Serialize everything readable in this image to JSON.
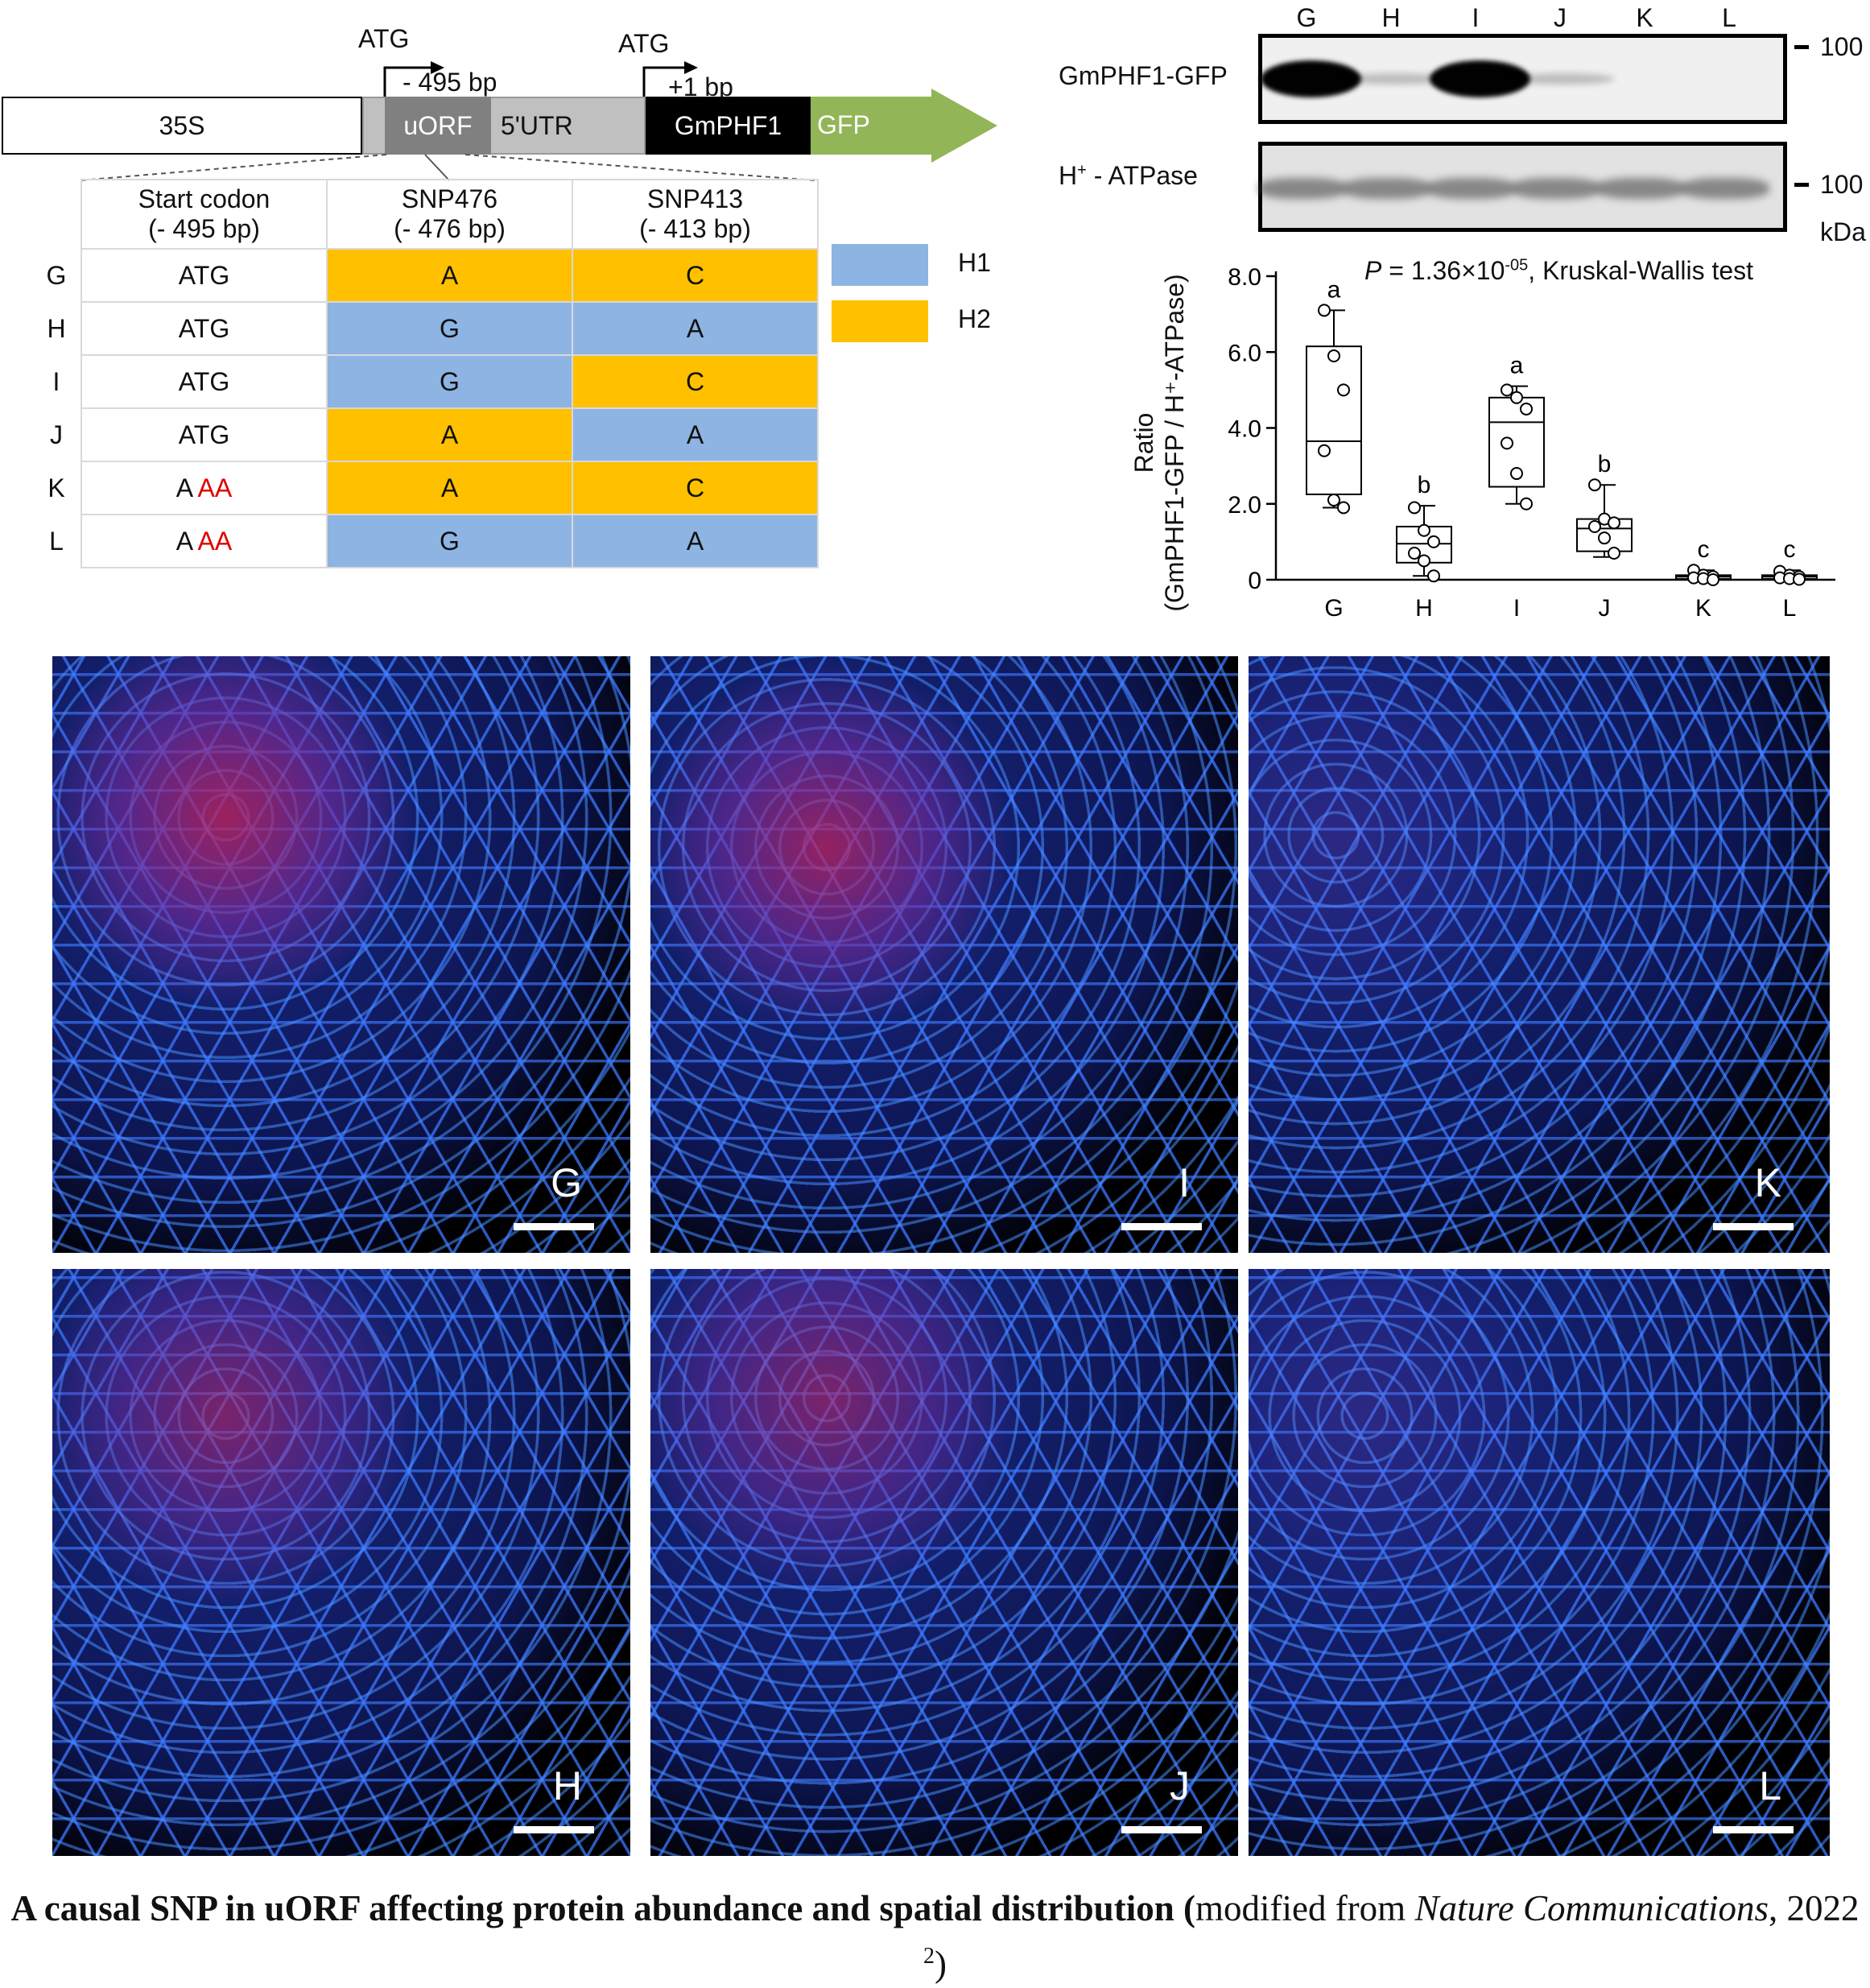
{
  "construct": {
    "atg1_label": "ATG",
    "atg1_pos": "- 495 bp",
    "atg2_label": "ATG",
    "atg2_pos": "+1 bp",
    "segments": [
      "35S",
      "uORF",
      "5'UTR",
      "GmPHF1",
      "GFP"
    ],
    "colors": {
      "promoter": "#ffffff",
      "uorf": "#808080",
      "utr": "#c0c0c0",
      "gene": "#000000",
      "gfp": "#92b558"
    }
  },
  "snp_table": {
    "headers": [
      {
        "line1": "Start codon",
        "line2": "(- 495 bp)"
      },
      {
        "line1": "SNP476",
        "line2": "(- 476 bp)"
      },
      {
        "line1": "SNP413",
        "line2": "(- 413 bp)"
      }
    ],
    "rows": [
      {
        "label": "G",
        "codon_a": "ATG",
        "codon_b": "",
        "snp476": "A",
        "snp476_hap": "H2",
        "snp413": "C",
        "snp413_hap": "H2"
      },
      {
        "label": "H",
        "codon_a": "ATG",
        "codon_b": "",
        "snp476": "G",
        "snp476_hap": "H1",
        "snp413": "A",
        "snp413_hap": "H1"
      },
      {
        "label": "I",
        "codon_a": "ATG",
        "codon_b": "",
        "snp476": "G",
        "snp476_hap": "H1",
        "snp413": "C",
        "snp413_hap": "H2"
      },
      {
        "label": "J",
        "codon_a": "ATG",
        "codon_b": "",
        "snp476": "A",
        "snp476_hap": "H2",
        "snp413": "A",
        "snp413_hap": "H1"
      },
      {
        "label": "K",
        "codon_a": "A ",
        "codon_b": "AA",
        "snp476": "A",
        "snp476_hap": "H2",
        "snp413": "C",
        "snp413_hap": "H2"
      },
      {
        "label": "L",
        "codon_a": "A ",
        "codon_b": "AA",
        "snp476": "G",
        "snp476_hap": "H1",
        "snp413": "A",
        "snp413_hap": "H1"
      }
    ],
    "legend": [
      {
        "label": "H1",
        "color": "#8db4e2"
      },
      {
        "label": "H2",
        "color": "#ffc000"
      }
    ]
  },
  "western": {
    "lanes": [
      "G",
      "H",
      "I",
      "J",
      "K",
      "L"
    ],
    "blot1_label": "GmPHF1-GFP",
    "blot2_label_main": "H",
    "blot2_label_sup": "+",
    "blot2_label_rest": " - ATPase",
    "marker1": "100",
    "marker2": "100",
    "unit": "kDa",
    "band_intensity_gfp": [
      0.95,
      0.2,
      0.95,
      0.2,
      0.0,
      0.0
    ]
  },
  "chart_data": {
    "type": "box",
    "stat_p": "P",
    "stat_text1": " = 1.36×10",
    "stat_exp": "-05",
    "stat_text2": ", Kruskal-Wallis test",
    "ylabel_line1": "Ratio",
    "ylabel_line2": "(GmPHF1-GFP / H⁺-ATPase)",
    "yticks": [
      "8.0",
      "6.0",
      "4.0",
      "2.0",
      "0"
    ],
    "ylim": [
      0,
      8
    ],
    "categories": [
      "G",
      "H",
      "I",
      "J",
      "K",
      "L"
    ],
    "letters": [
      "a",
      "b",
      "a",
      "b",
      "c",
      "c"
    ],
    "boxes": [
      {
        "min": 1.9,
        "q1": 2.25,
        "median": 3.65,
        "q3": 6.15,
        "max": 7.1,
        "points": [
          7.1,
          5.9,
          5.0,
          3.4,
          2.1,
          1.9
        ]
      },
      {
        "min": 0.1,
        "q1": 0.45,
        "median": 0.95,
        "q3": 1.4,
        "max": 1.95,
        "points": [
          1.9,
          1.3,
          1.0,
          0.7,
          0.5,
          0.1
        ]
      },
      {
        "min": 2.0,
        "q1": 2.45,
        "median": 4.15,
        "q3": 4.8,
        "max": 5.1,
        "points": [
          5.0,
          4.8,
          4.5,
          3.6,
          2.8,
          2.0
        ]
      },
      {
        "min": 0.6,
        "q1": 0.75,
        "median": 1.35,
        "q3": 1.6,
        "max": 2.5,
        "points": [
          2.5,
          1.6,
          1.5,
          1.4,
          1.1,
          0.7
        ]
      },
      {
        "min": 0.0,
        "q1": 0.02,
        "median": 0.08,
        "q3": 0.12,
        "max": 0.25,
        "points": [
          0.25,
          0.12,
          0.08,
          0.05,
          0.03,
          0.0
        ]
      },
      {
        "min": 0.0,
        "q1": 0.02,
        "median": 0.08,
        "q3": 0.12,
        "max": 0.25,
        "points": [
          0.22,
          0.12,
          0.08,
          0.05,
          0.03,
          0.01
        ]
      }
    ]
  },
  "micrographs": [
    {
      "label": "G",
      "red": 0.75
    },
    {
      "label": "I",
      "red": 0.7
    },
    {
      "label": "K",
      "red": 0.1
    },
    {
      "label": "H",
      "red": 0.55
    },
    {
      "label": "J",
      "red": 0.55
    },
    {
      "label": "L",
      "red": 0.1
    }
  ],
  "caption": {
    "bold": "A causal SNP in uORF affecting protein abundance and spatial distribution",
    "paren_open": " (",
    "normal1": "modified from ",
    "journal": "Nature Communications",
    "normal2": ", 2022 ",
    "ref": "2",
    "paren_close": ")"
  }
}
